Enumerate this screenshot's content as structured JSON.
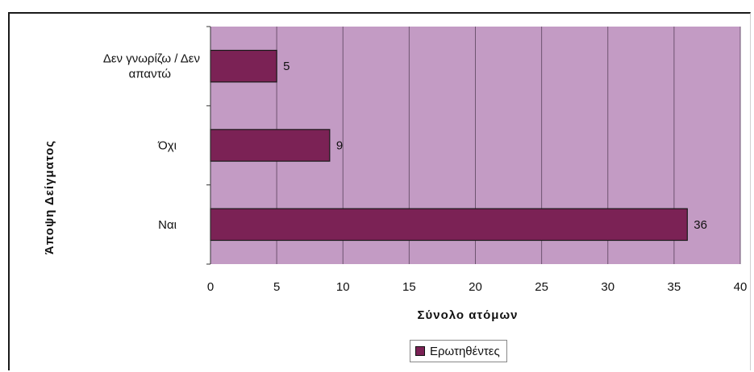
{
  "chart_data": {
    "type": "bar",
    "orientation": "horizontal",
    "categories": [
      "Δεν γνωρίζω / Δεν απαντώ",
      "Όχι",
      "Ναι"
    ],
    "category_lines": [
      [
        "Δεν γνωρίζω / Δεν",
        "απαντώ"
      ],
      [
        "Όχι"
      ],
      [
        "Ναι"
      ]
    ],
    "series": [
      {
        "name": "Ερωτηθέντες",
        "values": [
          5,
          9,
          36
        ],
        "color": "#7b2255"
      }
    ],
    "xlabel": "Σύνολο ατόμων",
    "ylabel": "Άποψη Δείγματος",
    "xlim": [
      0,
      40
    ],
    "xticks": [
      0,
      5,
      10,
      15,
      20,
      25,
      30,
      35,
      40
    ],
    "grid": true,
    "legend_position": "bottom",
    "plot_background": "#c39bc4",
    "gridline_color": "#6e5470"
  }
}
